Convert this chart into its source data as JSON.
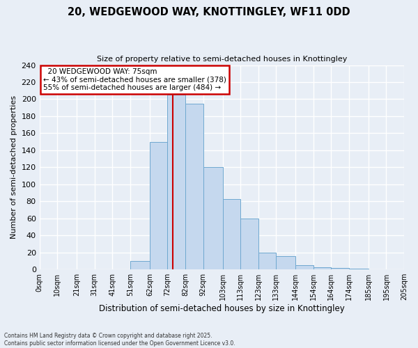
{
  "title_line1": "20, WEDGEWOOD WAY, KNOTTINGLEY, WF11 0DD",
  "title_line2": "Size of property relative to semi-detached houses in Knottingley",
  "xlabel": "Distribution of semi-detached houses by size in Knottingley",
  "ylabel": "Number of semi-detached properties",
  "annotation_line1": "20 WEDGEWOOD WAY: 75sqm",
  "annotation_line2": "← 43% of semi-detached houses are smaller (378)",
  "annotation_line3": "55% of semi-detached houses are larger (484) →",
  "property_size": 75,
  "bin_edges": [
    0,
    10,
    21,
    31,
    41,
    51,
    62,
    72,
    82,
    92,
    103,
    113,
    123,
    133,
    144,
    154,
    164,
    174,
    185,
    195,
    205
  ],
  "bin_labels": [
    "0sqm",
    "10sqm",
    "21sqm",
    "31sqm",
    "41sqm",
    "51sqm",
    "62sqm",
    "72sqm",
    "82sqm",
    "92sqm",
    "103sqm",
    "113sqm",
    "123sqm",
    "133sqm",
    "144sqm",
    "154sqm",
    "164sqm",
    "174sqm",
    "185sqm",
    "195sqm",
    "205sqm"
  ],
  "counts": [
    0,
    0,
    0,
    0,
    0,
    10,
    150,
    205,
    195,
    120,
    83,
    60,
    20,
    16,
    5,
    3,
    2,
    1,
    0,
    0
  ],
  "bar_color": "#c5d8ee",
  "bar_edge_color": "#6fa8d0",
  "highlight_color": "#cc0000",
  "annotation_box_color": "#cc0000",
  "background_color": "#e8eef6",
  "grid_color": "#ffffff",
  "footer_text": "Contains HM Land Registry data © Crown copyright and database right 2025.\nContains public sector information licensed under the Open Government Licence v3.0.",
  "ylim": [
    0,
    240
  ],
  "yticks": [
    0,
    20,
    40,
    60,
    80,
    100,
    120,
    140,
    160,
    180,
    200,
    220,
    240
  ]
}
